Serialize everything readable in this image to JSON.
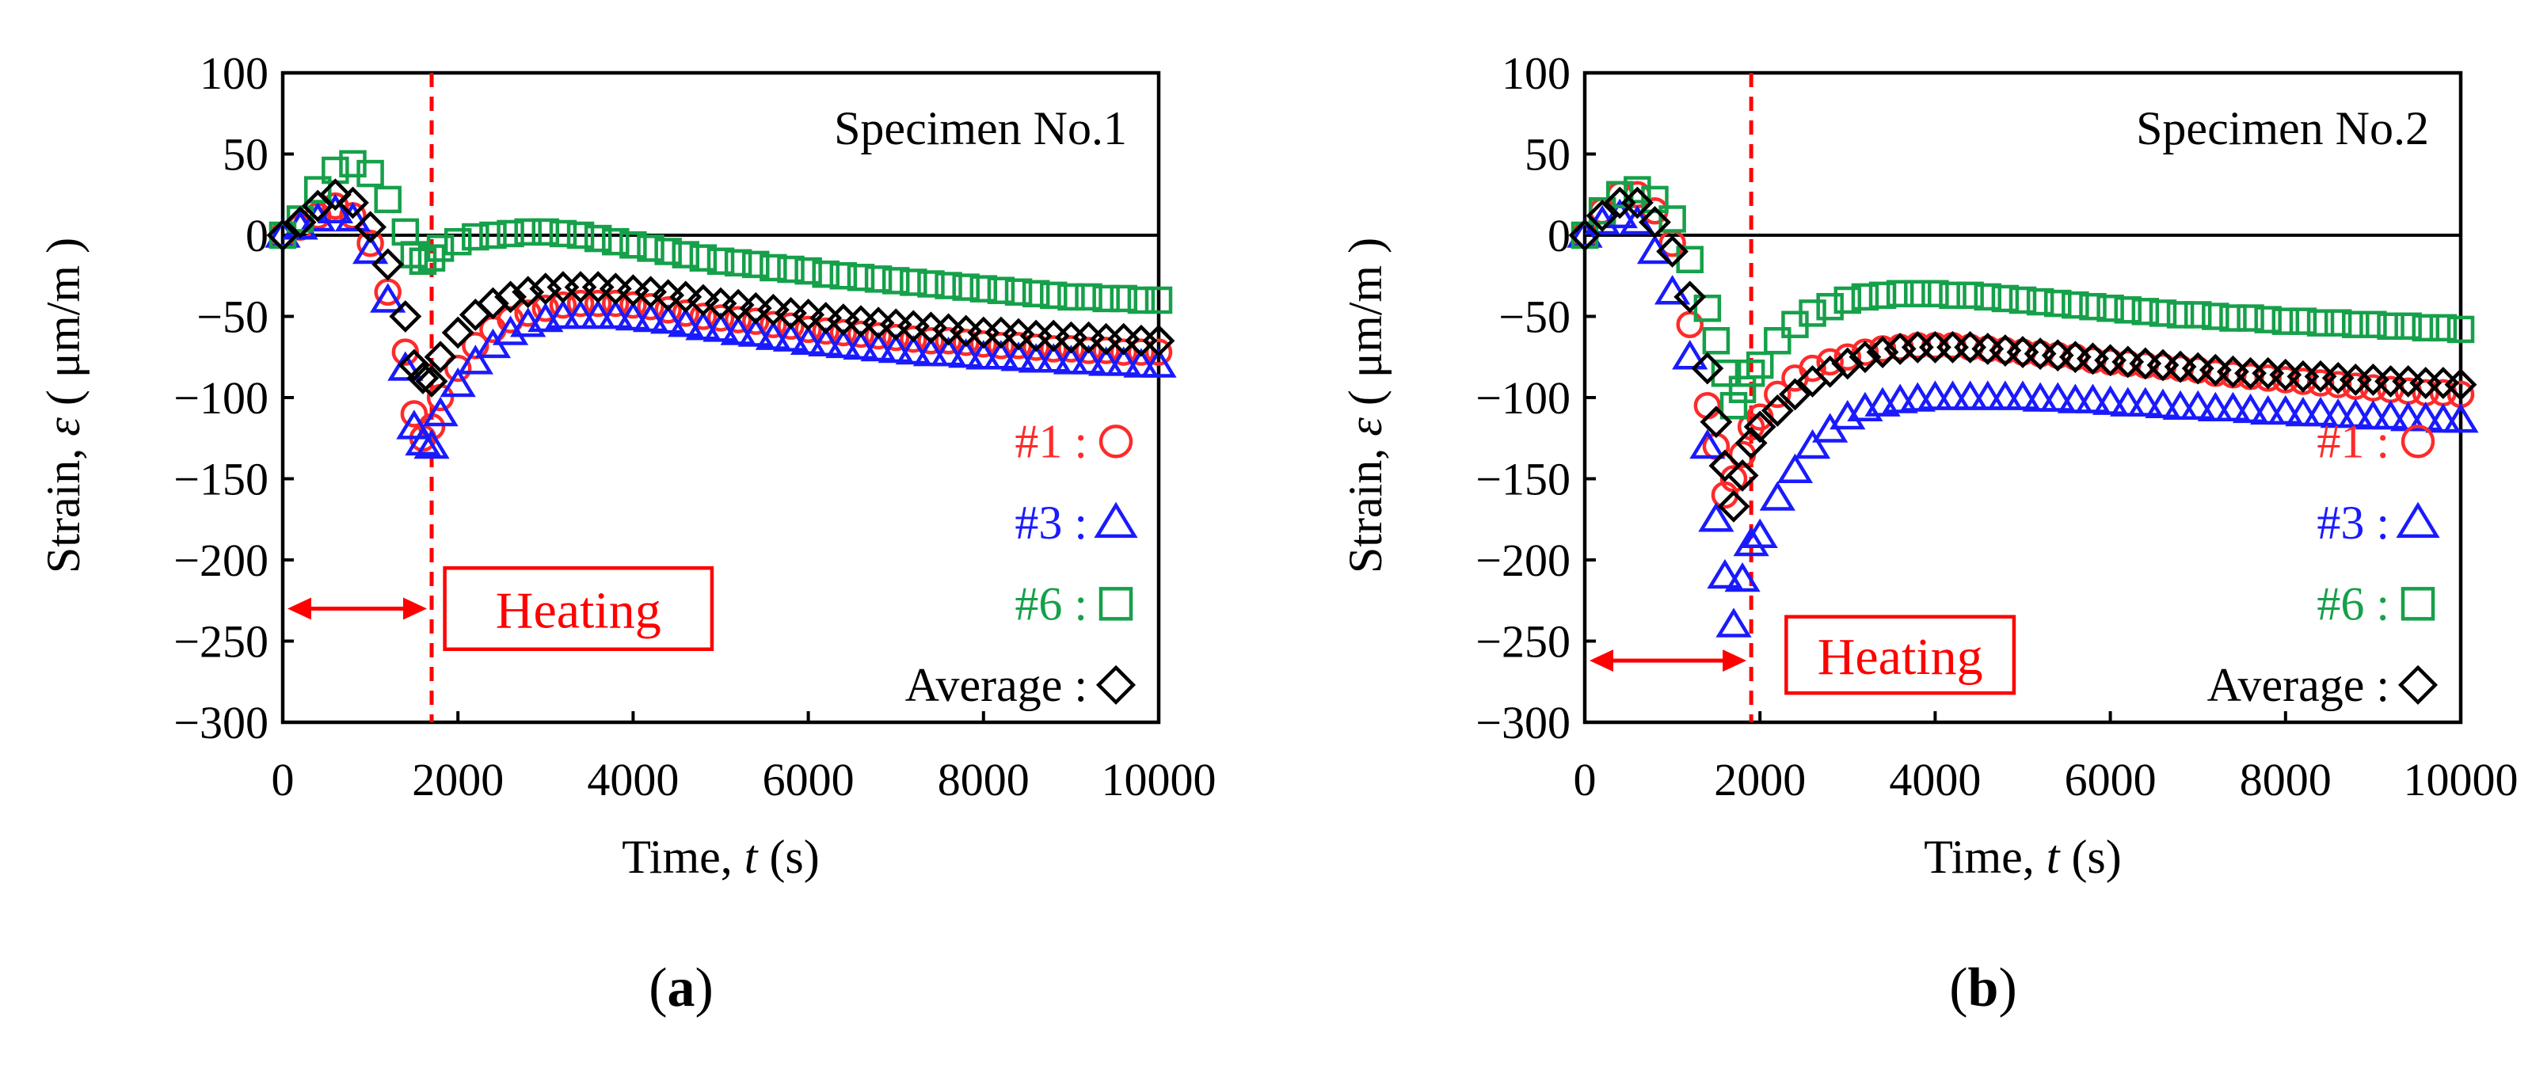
{
  "colors": {
    "s1": "#ff2a2a",
    "s3": "#1a1aff",
    "s6": "#16a04a",
    "avg": "#000000",
    "heating": "#ff0000"
  },
  "chart_data": [
    {
      "type": "scatter",
      "panel_label": "(a)",
      "panel_letter": "a",
      "annotation": "Specimen No.1",
      "xlabel": "Time, t (s)",
      "xlabel_prefix": "Time, ",
      "xlabel_italic": "t",
      "xlabel_suffix": " (s)",
      "ylabel_prefix": "Strain, ",
      "ylabel_italic": "ε",
      "ylabel_suffix": " ( μm/m )",
      "xlim": [
        0,
        10000
      ],
      "ylim": [
        -300,
        100
      ],
      "xticks": [
        0,
        2000,
        4000,
        6000,
        8000,
        10000
      ],
      "yticks": [
        100,
        50,
        0,
        -50,
        -100,
        -150,
        -200,
        -250,
        -300
      ],
      "heating_end": 1700,
      "heating_label": "Heating",
      "heating_arrow_y": -230,
      "heating_box": {
        "x_from": 1850,
        "x_to": 4900,
        "y_top": -205,
        "y_bottom": -255
      },
      "legend": [
        {
          "id": "s1",
          "label": "#1 :",
          "marker": "circle"
        },
        {
          "id": "s3",
          "label": "#3 :",
          "marker": "triangle"
        },
        {
          "id": "s6",
          "label": "#6 :",
          "marker": "square"
        },
        {
          "id": "avg",
          "label": "Average :",
          "marker": "diamond"
        }
      ],
      "series": [
        {
          "name": "#1",
          "id": "s1",
          "marker": "circle",
          "x": [
            0,
            200,
            400,
            600,
            800,
            1000,
            1200,
            1400,
            1500,
            1600,
            1700,
            1800,
            2000,
            2200,
            2400,
            2600,
            2800,
            3000,
            3200,
            3400,
            3600,
            3800,
            4000,
            4200,
            4400,
            4600,
            4800,
            5000,
            5200,
            5400,
            5600,
            5800,
            6000,
            6200,
            6400,
            6600,
            6800,
            7000,
            7200,
            7400,
            7600,
            7800,
            8000,
            8200,
            8400,
            8600,
            8800,
            9000,
            9200,
            9400,
            9600,
            9800,
            10000
          ],
          "y": [
            0,
            5,
            12,
            18,
            12,
            -5,
            -35,
            -72,
            -110,
            -125,
            -118,
            -100,
            -82,
            -68,
            -58,
            -52,
            -48,
            -45,
            -43,
            -42,
            -42,
            -42,
            -43,
            -44,
            -46,
            -48,
            -50,
            -51,
            -52,
            -53,
            -55,
            -56,
            -58,
            -59,
            -60,
            -61,
            -62,
            -63,
            -64,
            -65,
            -65,
            -66,
            -67,
            -68,
            -68,
            -69,
            -70,
            -70,
            -71,
            -71,
            -72,
            -72,
            -72
          ]
        },
        {
          "name": "#3",
          "id": "s3",
          "marker": "triangle",
          "x": [
            0,
            200,
            400,
            600,
            800,
            1000,
            1200,
            1400,
            1500,
            1600,
            1700,
            1800,
            2000,
            2200,
            2400,
            2600,
            2800,
            3000,
            3200,
            3400,
            3600,
            3800,
            4000,
            4200,
            4400,
            4600,
            4800,
            5000,
            5200,
            5400,
            5600,
            5800,
            6000,
            6200,
            6400,
            6600,
            6800,
            7000,
            7200,
            7400,
            7600,
            7800,
            8000,
            8200,
            8400,
            8600,
            8800,
            9000,
            9200,
            9400,
            9600,
            9800,
            10000
          ],
          "y": [
            0,
            5,
            10,
            15,
            10,
            -10,
            -40,
            -82,
            -118,
            -128,
            -130,
            -110,
            -92,
            -78,
            -68,
            -60,
            -55,
            -52,
            -50,
            -50,
            -50,
            -50,
            -51,
            -52,
            -53,
            -55,
            -57,
            -58,
            -60,
            -61,
            -63,
            -64,
            -66,
            -67,
            -68,
            -69,
            -70,
            -71,
            -72,
            -73,
            -73,
            -74,
            -75,
            -75,
            -76,
            -77,
            -77,
            -78,
            -78,
            -79,
            -79,
            -80,
            -80
          ]
        },
        {
          "name": "#6",
          "id": "s6",
          "marker": "square",
          "x": [
            0,
            200,
            400,
            600,
            800,
            1000,
            1200,
            1400,
            1500,
            1600,
            1700,
            1800,
            2000,
            2200,
            2400,
            2600,
            2800,
            3000,
            3200,
            3400,
            3600,
            3800,
            4000,
            4200,
            4400,
            4600,
            4800,
            5000,
            5200,
            5400,
            5600,
            5800,
            6000,
            6200,
            6400,
            6600,
            6800,
            7000,
            7200,
            7400,
            7600,
            7800,
            8000,
            8200,
            8400,
            8600,
            8800,
            9000,
            9200,
            9400,
            9600,
            9800,
            10000
          ],
          "y": [
            0,
            10,
            28,
            40,
            44,
            38,
            22,
            2,
            -12,
            -16,
            -14,
            -8,
            -4,
            -1,
            0,
            1,
            2,
            2,
            1,
            0,
            -2,
            -4,
            -6,
            -8,
            -10,
            -12,
            -14,
            -16,
            -17,
            -18,
            -20,
            -21,
            -22,
            -24,
            -25,
            -26,
            -27,
            -28,
            -29,
            -30,
            -31,
            -32,
            -33,
            -34,
            -35,
            -36,
            -37,
            -38,
            -38,
            -39,
            -39,
            -40,
            -40
          ]
        },
        {
          "name": "Average",
          "id": "avg",
          "marker": "diamond",
          "x": [
            0,
            200,
            400,
            600,
            800,
            1000,
            1200,
            1400,
            1500,
            1600,
            1700,
            1800,
            2000,
            2200,
            2400,
            2600,
            2800,
            3000,
            3200,
            3400,
            3600,
            3800,
            4000,
            4200,
            4400,
            4600,
            4800,
            5000,
            5200,
            5400,
            5600,
            5800,
            6000,
            6200,
            6400,
            6600,
            6800,
            7000,
            7200,
            7400,
            7600,
            7800,
            8000,
            8200,
            8400,
            8600,
            8800,
            9000,
            9200,
            9400,
            9600,
            9800,
            10000
          ],
          "y": [
            0,
            8,
            18,
            25,
            20,
            5,
            -18,
            -50,
            -80,
            -88,
            -90,
            -75,
            -60,
            -49,
            -42,
            -38,
            -35,
            -33,
            -32,
            -32,
            -32,
            -33,
            -34,
            -35,
            -37,
            -38,
            -40,
            -42,
            -43,
            -45,
            -46,
            -48,
            -49,
            -51,
            -52,
            -53,
            -54,
            -55,
            -56,
            -57,
            -58,
            -59,
            -60,
            -60,
            -61,
            -62,
            -62,
            -63,
            -63,
            -64,
            -64,
            -65,
            -65
          ]
        }
      ]
    },
    {
      "type": "scatter",
      "panel_label": "(b)",
      "panel_letter": "b",
      "annotation": "Specimen No.2",
      "xlabel": "Time, t (s)",
      "xlabel_prefix": "Time, ",
      "xlabel_italic": "t",
      "xlabel_suffix": " (s)",
      "ylabel_prefix": "Strain, ",
      "ylabel_italic": "ε",
      "ylabel_suffix": " ( μm/m )",
      "xlim": [
        0,
        10000
      ],
      "ylim": [
        -300,
        100
      ],
      "xticks": [
        0,
        2000,
        4000,
        6000,
        8000,
        10000
      ],
      "yticks": [
        100,
        50,
        0,
        -50,
        -100,
        -150,
        -200,
        -250,
        -300
      ],
      "heating_end": 1900,
      "heating_label": "Heating",
      "heating_arrow_y": -262,
      "heating_box": {
        "x_from": 2300,
        "x_to": 4900,
        "y_top": -235,
        "y_bottom": -282
      },
      "legend": [
        {
          "id": "s1",
          "label": "#1 :",
          "marker": "circle"
        },
        {
          "id": "s3",
          "label": "#3 :",
          "marker": "triangle"
        },
        {
          "id": "s6",
          "label": "#6 :",
          "marker": "square"
        },
        {
          "id": "avg",
          "label": "Average :",
          "marker": "diamond"
        }
      ],
      "series": [
        {
          "name": "#1",
          "id": "s1",
          "marker": "circle",
          "x": [
            0,
            200,
            400,
            600,
            800,
            1000,
            1200,
            1400,
            1500,
            1600,
            1700,
            1800,
            1900,
            2000,
            2200,
            2400,
            2600,
            2800,
            3000,
            3200,
            3400,
            3600,
            3800,
            4000,
            4200,
            4400,
            4600,
            4800,
            5000,
            5200,
            5400,
            5600,
            5800,
            6000,
            6200,
            6400,
            6600,
            6800,
            7000,
            7200,
            7400,
            7600,
            7800,
            8000,
            8200,
            8400,
            8600,
            8800,
            9000,
            9200,
            9400,
            9600,
            9800,
            10000
          ],
          "y": [
            0,
            15,
            25,
            25,
            15,
            -5,
            -55,
            -105,
            -130,
            -160,
            -150,
            -135,
            -118,
            -112,
            -98,
            -88,
            -82,
            -78,
            -75,
            -72,
            -70,
            -69,
            -68,
            -68,
            -68,
            -69,
            -70,
            -71,
            -72,
            -73,
            -74,
            -75,
            -77,
            -78,
            -79,
            -80,
            -81,
            -82,
            -83,
            -85,
            -86,
            -87,
            -88,
            -89,
            -90,
            -91,
            -92,
            -93,
            -94,
            -95,
            -96,
            -97,
            -97,
            -98
          ]
        },
        {
          "name": "#3",
          "id": "s3",
          "marker": "triangle",
          "x": [
            0,
            200,
            400,
            600,
            800,
            1000,
            1200,
            1400,
            1500,
            1600,
            1700,
            1800,
            1900,
            2000,
            2200,
            2400,
            2600,
            2800,
            3000,
            3200,
            3400,
            3600,
            3800,
            4000,
            4200,
            4400,
            4600,
            4800,
            5000,
            5200,
            5400,
            5600,
            5800,
            6000,
            6200,
            6400,
            6600,
            6800,
            7000,
            7200,
            7400,
            7600,
            7800,
            8000,
            8200,
            8400,
            8600,
            8800,
            9000,
            9200,
            9400,
            9600,
            9800,
            10000
          ],
          "y": [
            0,
            8,
            12,
            8,
            -10,
            -35,
            -75,
            -130,
            -175,
            -210,
            -240,
            -212,
            -190,
            -185,
            -162,
            -145,
            -130,
            -120,
            -112,
            -107,
            -104,
            -102,
            -101,
            -100,
            -100,
            -100,
            -100,
            -100,
            -100,
            -101,
            -101,
            -102,
            -102,
            -103,
            -104,
            -104,
            -105,
            -106,
            -106,
            -107,
            -107,
            -108,
            -109,
            -109,
            -110,
            -110,
            -111,
            -111,
            -112,
            -112,
            -113,
            -113,
            -114,
            -114
          ]
        },
        {
          "name": "#6",
          "id": "s6",
          "marker": "square",
          "x": [
            0,
            200,
            400,
            600,
            800,
            1000,
            1200,
            1400,
            1500,
            1600,
            1700,
            1800,
            1900,
            2000,
            2200,
            2400,
            2600,
            2800,
            3000,
            3200,
            3400,
            3600,
            3800,
            4000,
            4200,
            4400,
            4600,
            4800,
            5000,
            5200,
            5400,
            5600,
            5800,
            6000,
            6200,
            6400,
            6600,
            6800,
            7000,
            7200,
            7400,
            7600,
            7800,
            8000,
            8200,
            8400,
            8600,
            8800,
            9000,
            9200,
            9400,
            9600,
            9800,
            10000
          ],
          "y": [
            0,
            15,
            25,
            28,
            22,
            10,
            -15,
            -45,
            -65,
            -85,
            -105,
            -95,
            -85,
            -80,
            -65,
            -55,
            -48,
            -44,
            -40,
            -38,
            -37,
            -36,
            -36,
            -36,
            -37,
            -37,
            -38,
            -39,
            -40,
            -41,
            -42,
            -43,
            -44,
            -45,
            -46,
            -47,
            -48,
            -49,
            -49,
            -50,
            -51,
            -51,
            -52,
            -53,
            -53,
            -54,
            -54,
            -55,
            -55,
            -56,
            -56,
            -57,
            -57,
            -58
          ]
        },
        {
          "name": "Average",
          "id": "avg",
          "marker": "diamond",
          "x": [
            0,
            200,
            400,
            600,
            800,
            1000,
            1200,
            1400,
            1500,
            1600,
            1700,
            1800,
            1900,
            2000,
            2200,
            2400,
            2600,
            2800,
            3000,
            3200,
            3400,
            3600,
            3800,
            4000,
            4200,
            4400,
            4600,
            4800,
            5000,
            5200,
            5400,
            5600,
            5800,
            6000,
            6200,
            6400,
            6600,
            6800,
            7000,
            7200,
            7400,
            7600,
            7800,
            8000,
            8200,
            8400,
            8600,
            8800,
            9000,
            9200,
            9400,
            9600,
            9800,
            10000
          ],
          "y": [
            0,
            12,
            20,
            20,
            8,
            -10,
            -38,
            -82,
            -115,
            -142,
            -167,
            -148,
            -128,
            -118,
            -108,
            -98,
            -90,
            -84,
            -79,
            -75,
            -72,
            -70,
            -69,
            -69,
            -69,
            -69,
            -70,
            -71,
            -72,
            -73,
            -74,
            -75,
            -76,
            -77,
            -78,
            -79,
            -80,
            -81,
            -82,
            -83,
            -84,
            -85,
            -85,
            -86,
            -87,
            -87,
            -88,
            -89,
            -89,
            -90,
            -90,
            -91,
            -91,
            -92
          ]
        }
      ]
    }
  ]
}
